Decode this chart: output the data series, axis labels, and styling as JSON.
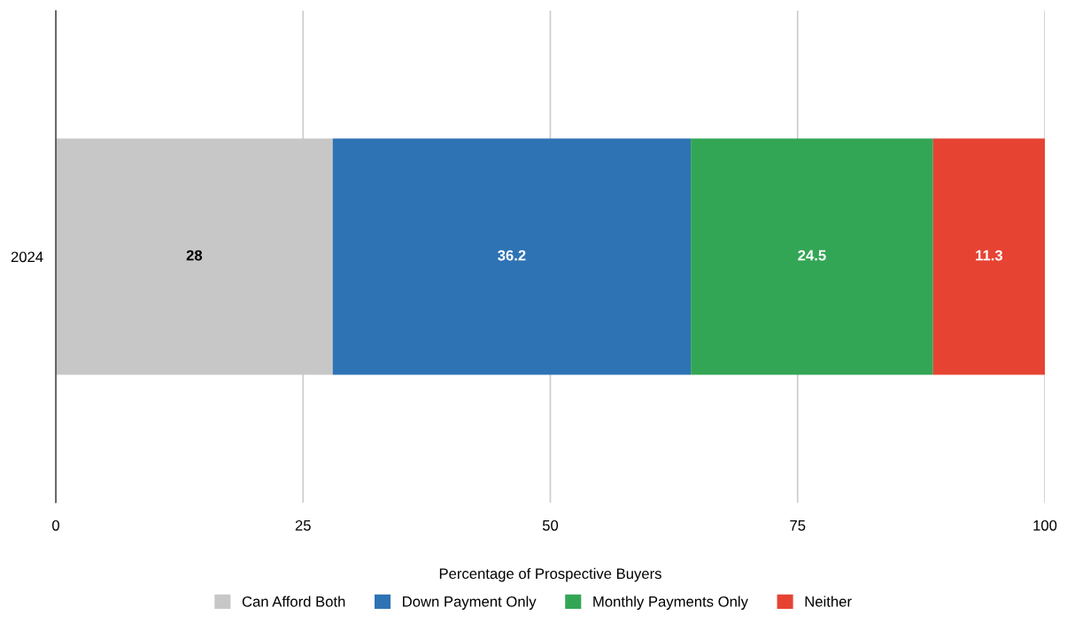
{
  "chart_data": {
    "type": "bar",
    "orientation": "horizontal",
    "stacked": true,
    "xlabel": "Percentage of Prospective Buyers",
    "categories": [
      "2024"
    ],
    "series": [
      {
        "name": "Can Afford Both",
        "color": "#c7c7c7",
        "values": [
          28
        ]
      },
      {
        "name": "Down Payment Only",
        "color": "#2e73b4",
        "values": [
          36.2
        ]
      },
      {
        "name": "Monthly Payments Only",
        "color": "#33a655",
        "values": [
          24.5
        ]
      },
      {
        "name": "Neither",
        "color": "#e64333",
        "values": [
          11.3
        ]
      }
    ],
    "xlim": [
      0,
      100
    ],
    "xticks": [
      0,
      25,
      50,
      75,
      100
    ],
    "grid": "x",
    "legend": "bottom",
    "data_labels": true
  }
}
